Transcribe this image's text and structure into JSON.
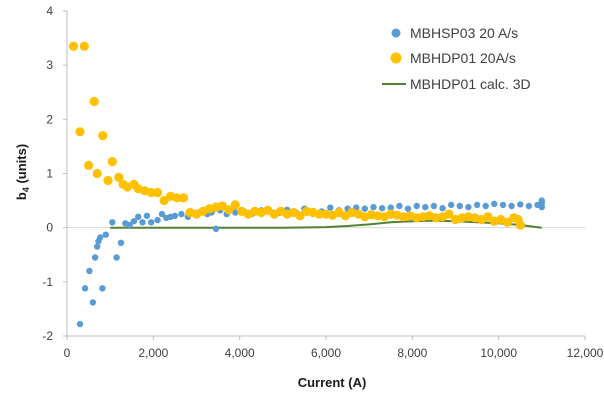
{
  "chart_data": {
    "type": "scatter",
    "title": "",
    "xlabel": "Current (A)",
    "ylabel": "b",
    "ylabel_sub": "4",
    "ylabel_unit": " (units)",
    "xlim": [
      0,
      12000
    ],
    "ylim": [
      -2,
      4
    ],
    "x_ticks": [
      0,
      2000,
      4000,
      6000,
      8000,
      10000,
      12000
    ],
    "x_tick_labels": [
      "0",
      "2,000",
      "4,000",
      "6,000",
      "8,000",
      "10,000",
      "12,000"
    ],
    "y_ticks": [
      -2,
      -1,
      0,
      1,
      2,
      3,
      4
    ],
    "y_tick_labels": [
      "-2",
      "-1",
      "0",
      "1",
      "2",
      "3",
      "4"
    ],
    "grid": false,
    "legend_position": "top-right",
    "colors": {
      "series1": "#5b9bd5",
      "series2": "#ffc000",
      "series3": "#548235"
    },
    "series": [
      {
        "name": "MBHSP03 20 A/s",
        "kind": "scatter",
        "color": "#5b9bd5",
        "x": [
          300,
          420,
          520,
          600,
          650,
          700,
          730,
          770,
          820,
          900,
          1050,
          1150,
          1250,
          1350,
          1450,
          1550,
          1650,
          1750,
          1850,
          1950,
          2100,
          2200,
          2300,
          2400,
          2500,
          2650,
          2800,
          2950,
          3100,
          3250,
          3350,
          3450,
          3550,
          3700,
          3900,
          4100,
          4300,
          4500,
          4700,
          4900,
          5100,
          5300,
          5500,
          5700,
          5900,
          6100,
          6300,
          6500,
          6700,
          6900,
          7100,
          7300,
          7500,
          7700,
          7900,
          8100,
          8300,
          8500,
          8700,
          8900,
          9100,
          9300,
          9500,
          9700,
          9900,
          10100,
          10300,
          10500,
          10700,
          10900,
          11000,
          11000,
          11000
        ],
        "y": [
          -1.78,
          -1.12,
          -0.8,
          -1.38,
          -0.55,
          -0.35,
          -0.25,
          -0.18,
          -1.12,
          -0.13,
          0.1,
          -0.55,
          -0.28,
          0.08,
          0.05,
          0.12,
          0.2,
          0.1,
          0.22,
          0.1,
          0.14,
          0.25,
          0.18,
          0.2,
          0.22,
          0.25,
          0.2,
          0.27,
          0.3,
          0.25,
          0.28,
          -0.02,
          0.32,
          0.25,
          0.28,
          0.3,
          0.26,
          0.32,
          0.3,
          0.27,
          0.33,
          0.28,
          0.35,
          0.3,
          0.3,
          0.37,
          0.32,
          0.35,
          0.37,
          0.35,
          0.38,
          0.36,
          0.37,
          0.4,
          0.35,
          0.4,
          0.38,
          0.4,
          0.36,
          0.42,
          0.4,
          0.38,
          0.42,
          0.4,
          0.44,
          0.42,
          0.4,
          0.43,
          0.4,
          0.42,
          0.45,
          0.5,
          0.38
        ]
      },
      {
        "name": "MBHDP01 20A/s",
        "kind": "scatter",
        "color": "#ffc000",
        "x": [
          150,
          300,
          400,
          500,
          630,
          700,
          830,
          950,
          1050,
          1200,
          1300,
          1400,
          1550,
          1650,
          1800,
          1950,
          2100,
          2250,
          2400,
          2550,
          2700,
          2850,
          3000,
          3150,
          3300,
          3450,
          3600,
          3750,
          3900,
          4050,
          4200,
          4350,
          4500,
          4650,
          4800,
          4950,
          5100,
          5250,
          5400,
          5550,
          5700,
          5850,
          6000,
          6150,
          6300,
          6450,
          6600,
          6750,
          6900,
          7050,
          7200,
          7350,
          7500,
          7650,
          7800,
          7950,
          8100,
          8250,
          8400,
          8550,
          8700,
          8850,
          9000,
          9150,
          9300,
          9450,
          9600,
          9750,
          9900,
          10050,
          10200,
          10350,
          10500,
          10450
        ],
        "y": [
          3.35,
          1.77,
          3.35,
          1.15,
          2.33,
          1.0,
          1.7,
          0.87,
          1.22,
          0.93,
          0.8,
          0.75,
          0.8,
          0.72,
          0.68,
          0.65,
          0.65,
          0.5,
          0.58,
          0.55,
          0.55,
          0.28,
          0.25,
          0.3,
          0.35,
          0.38,
          0.4,
          0.33,
          0.42,
          0.3,
          0.25,
          0.3,
          0.28,
          0.32,
          0.25,
          0.3,
          0.25,
          0.28,
          0.22,
          0.3,
          0.28,
          0.25,
          0.25,
          0.23,
          0.28,
          0.22,
          0.28,
          0.25,
          0.2,
          0.24,
          0.22,
          0.2,
          0.25,
          0.23,
          0.2,
          0.22,
          0.18,
          0.2,
          0.22,
          0.18,
          0.2,
          0.25,
          0.15,
          0.18,
          0.2,
          0.18,
          0.15,
          0.2,
          0.12,
          0.15,
          0.1,
          0.18,
          0.05,
          0.15
        ]
      },
      {
        "name": "MBHDP01 calc. 3D",
        "kind": "line",
        "color": "#548235",
        "x": [
          1000,
          2000,
          3000,
          4000,
          5000,
          6000,
          6500,
          7000,
          7500,
          8000,
          8500,
          9000,
          9500,
          10000,
          10500,
          11000
        ],
        "y": [
          0.0,
          0.0,
          0.0,
          0.0,
          0.0,
          0.01,
          0.03,
          0.06,
          0.1,
          0.12,
          0.13,
          0.12,
          0.1,
          0.08,
          0.05,
          0.0
        ]
      }
    ]
  }
}
